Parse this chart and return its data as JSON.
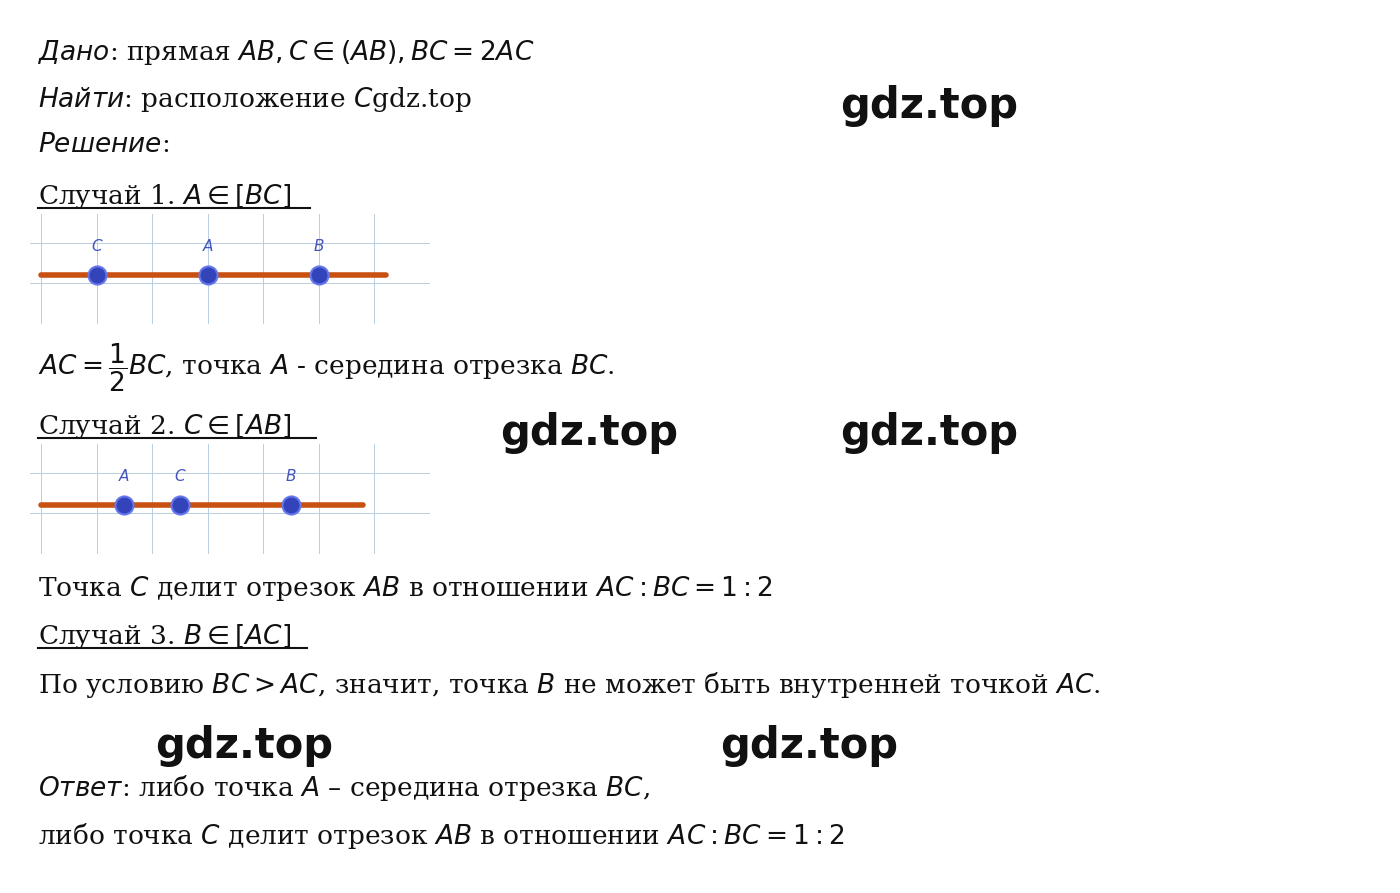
{
  "bg_color": "#ffffff",
  "grid_color": "#b8cfe0",
  "diag_bg_color": "#d8e8f0",
  "line_color": "#c85010",
  "point_color": "#3344bb",
  "point_edge_color": "#5566cc",
  "text_color": "#111111",
  "blue_label_color": "#4455bb",
  "diagram1": {
    "points": [
      {
        "label": "C",
        "x": 1.0
      },
      {
        "label": "A",
        "x": 3.0
      },
      {
        "label": "B",
        "x": 5.0
      }
    ],
    "xlim": [
      -0.2,
      7.0
    ],
    "ylim": [
      -1.2,
      1.5
    ],
    "line_x": [
      0.0,
      6.2
    ]
  },
  "diagram2": {
    "points": [
      {
        "label": "A",
        "x": 1.5
      },
      {
        "label": "C",
        "x": 2.5
      },
      {
        "label": "B",
        "x": 4.5
      }
    ],
    "xlim": [
      -0.2,
      7.0
    ],
    "ylim": [
      -1.2,
      1.5
    ],
    "line_x": [
      0.0,
      5.8
    ]
  }
}
